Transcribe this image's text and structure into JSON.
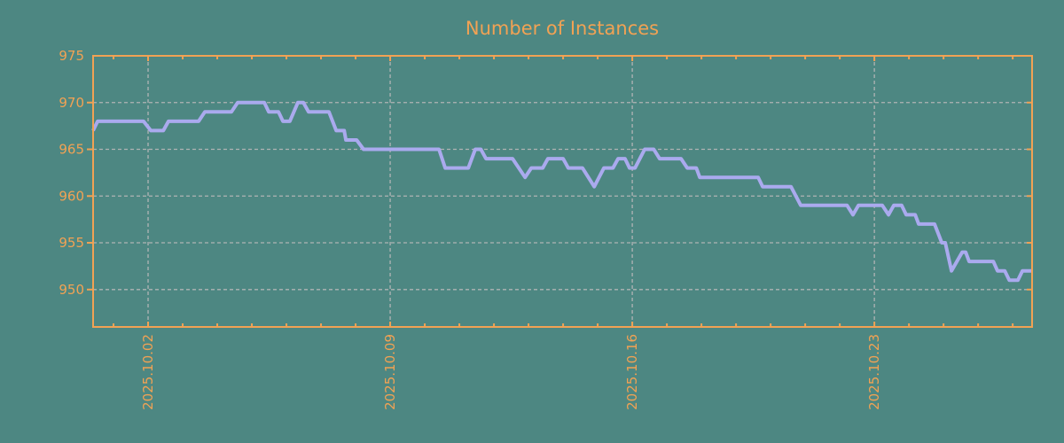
{
  "chart_data": {
    "type": "line",
    "title": "Number of Instances",
    "legend": "none",
    "grid": "dashed gridlines at major ticks",
    "x_axis": {
      "unit": "day of October 2025",
      "range": [
        0.41,
        27.56
      ],
      "major_ticks": [
        {
          "day": 2,
          "label": "2025.10.02"
        },
        {
          "day": 9,
          "label": "2025.10.09"
        },
        {
          "day": 16,
          "label": "2025.10.16"
        },
        {
          "day": 23,
          "label": "2025.10.23"
        }
      ],
      "minor_tick_interval_days": 1,
      "label_rotation_degrees": 90
    },
    "y_axis": {
      "range": [
        946,
        975
      ],
      "ticks": [
        950,
        955,
        960,
        965,
        970,
        975
      ]
    },
    "series": [
      {
        "name": "instances",
        "color": "#aaaaee",
        "points": [
          [
            0.41,
            967
          ],
          [
            0.54,
            968
          ],
          [
            1.87,
            968
          ],
          [
            2.08,
            967
          ],
          [
            2.44,
            967
          ],
          [
            2.59,
            968
          ],
          [
            3.46,
            968
          ],
          [
            3.64,
            969
          ],
          [
            4.41,
            969
          ],
          [
            4.59,
            970
          ],
          [
            5.36,
            970
          ],
          [
            5.49,
            969
          ],
          [
            5.77,
            969
          ],
          [
            5.9,
            968
          ],
          [
            6.1,
            968
          ],
          [
            6.33,
            970
          ],
          [
            6.49,
            970
          ],
          [
            6.64,
            969
          ],
          [
            7.23,
            969
          ],
          [
            7.44,
            967
          ],
          [
            7.67,
            967
          ],
          [
            7.72,
            966
          ],
          [
            8.03,
            966
          ],
          [
            8.23,
            965
          ],
          [
            10.41,
            965
          ],
          [
            10.59,
            963
          ],
          [
            11.26,
            963
          ],
          [
            11.46,
            965
          ],
          [
            11.62,
            965
          ],
          [
            11.77,
            964
          ],
          [
            12.54,
            964
          ],
          [
            12.9,
            962
          ],
          [
            13.08,
            963
          ],
          [
            13.41,
            963
          ],
          [
            13.56,
            964
          ],
          [
            14.0,
            964
          ],
          [
            14.15,
            963
          ],
          [
            14.56,
            963
          ],
          [
            14.9,
            961
          ],
          [
            15.18,
            963
          ],
          [
            15.44,
            963
          ],
          [
            15.59,
            964
          ],
          [
            15.79,
            964
          ],
          [
            15.92,
            963
          ],
          [
            16.08,
            963
          ],
          [
            16.36,
            965
          ],
          [
            16.62,
            965
          ],
          [
            16.79,
            964
          ],
          [
            17.41,
            964
          ],
          [
            17.59,
            963
          ],
          [
            17.85,
            963
          ],
          [
            17.95,
            962
          ],
          [
            19.64,
            962
          ],
          [
            19.77,
            961
          ],
          [
            20.59,
            961
          ],
          [
            20.87,
            959
          ],
          [
            22.21,
            959
          ],
          [
            22.38,
            958
          ],
          [
            22.54,
            959
          ],
          [
            23.23,
            959
          ],
          [
            23.41,
            958
          ],
          [
            23.56,
            959
          ],
          [
            23.79,
            959
          ],
          [
            23.92,
            958
          ],
          [
            24.18,
            958
          ],
          [
            24.28,
            957
          ],
          [
            24.74,
            957
          ],
          [
            24.95,
            955
          ],
          [
            25.05,
            955
          ],
          [
            25.23,
            952
          ],
          [
            25.54,
            954
          ],
          [
            25.64,
            954
          ],
          [
            25.74,
            953
          ],
          [
            26.44,
            953
          ],
          [
            26.56,
            952
          ],
          [
            26.77,
            952
          ],
          [
            26.9,
            951
          ],
          [
            27.15,
            951
          ],
          [
            27.28,
            952
          ],
          [
            27.56,
            952
          ]
        ]
      }
    ]
  },
  "style": {
    "background_color": "#4d8782",
    "axis_color": "#f1a254",
    "grid_color": "#b0b4b4",
    "line_color": "#aaaaee",
    "text_color": "#f1a254"
  }
}
